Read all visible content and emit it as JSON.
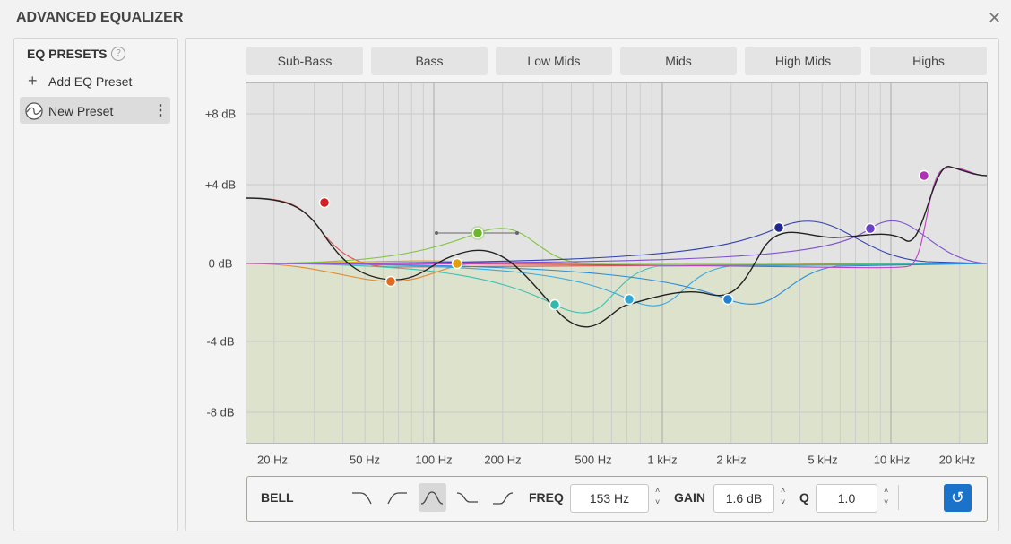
{
  "title": "ADVANCED EQUALIZER",
  "presets": {
    "heading": "EQ PRESETS",
    "add": "Add EQ Preset",
    "items": [
      "New Preset"
    ]
  },
  "bands": [
    "Sub-Bass",
    "Bass",
    "Low Mids",
    "Mids",
    "High Mids",
    "Highs"
  ],
  "graph": {
    "gain_labels": [
      "+8 dB",
      "+4 dB",
      "0 dB",
      "-4 dB",
      "-8 dB"
    ],
    "freq_labels": [
      "20 Hz",
      "50 Hz",
      "100 Hz",
      "200 Hz",
      "500 Hz",
      "1 kHz",
      "2 kHz",
      "5 kHz",
      "10 kHz",
      "20 kHz"
    ]
  },
  "controls": {
    "filter": "BELL",
    "freq_label": "FREQ",
    "freq": "153 Hz",
    "gain_label": "GAIN",
    "gain": "1.6 dB",
    "q_label": "Q",
    "q": "1.0"
  }
}
